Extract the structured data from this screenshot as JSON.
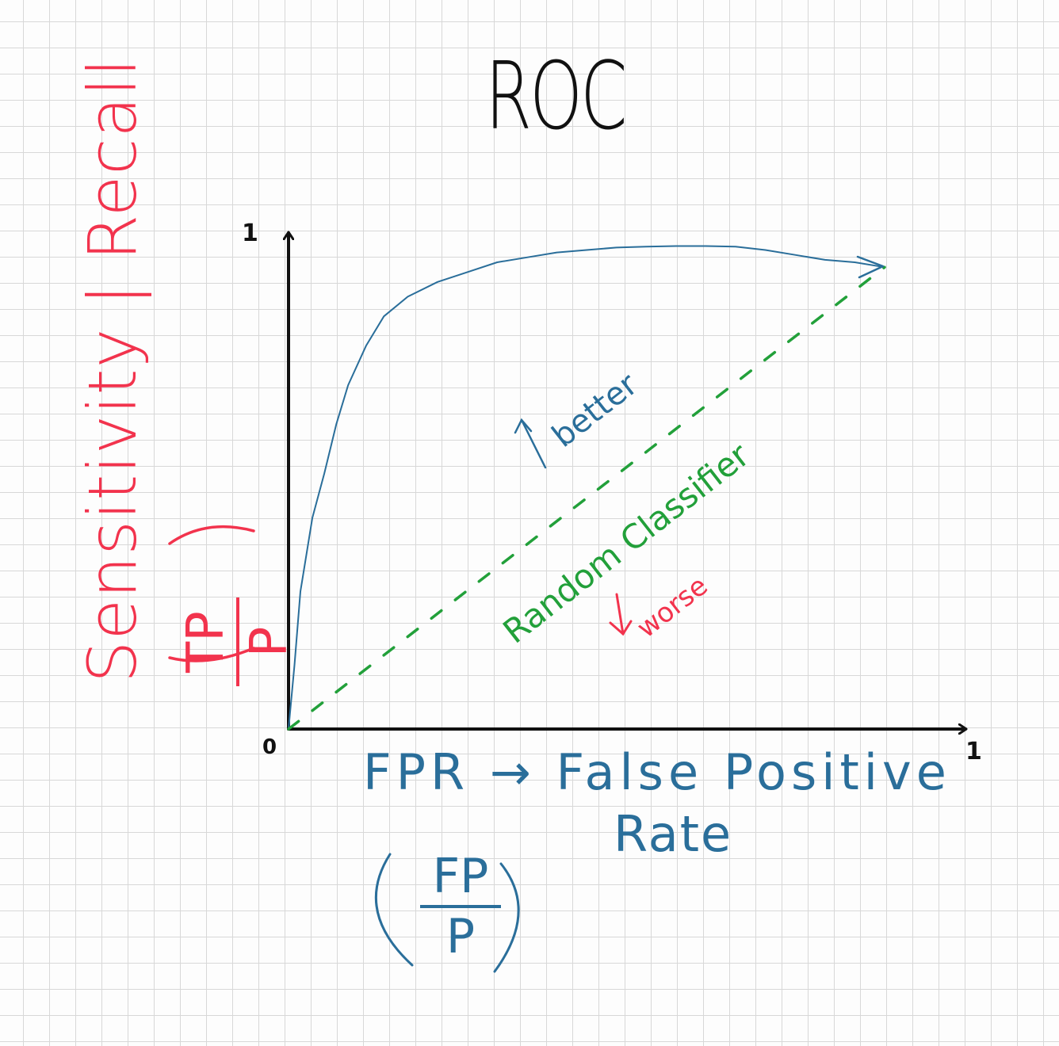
{
  "chart_data": {
    "type": "line",
    "title": "ROC",
    "xlabel_line1": "FPR → False Positive",
    "xlabel_line2": "Rate",
    "xlabel_formula": {
      "numerator": "FP",
      "denominator": "P"
    },
    "ylabel": "Sensitivity | Recall",
    "ylabel_formula": {
      "numerator": "TP",
      "denominator": "P"
    },
    "x_ticks": [
      "0",
      "1"
    ],
    "y_ticks": [
      "1"
    ],
    "xlim": [
      0,
      1
    ],
    "ylim": [
      0,
      1
    ],
    "grid": true,
    "series": [
      {
        "color": "#2a6e9a",
        "style": "solid",
        "x": [
          0,
          0.01,
          0.02,
          0.04,
          0.06,
          0.08,
          0.1,
          0.13,
          0.16,
          0.2,
          0.25,
          0.3,
          0.35,
          0.4,
          0.45,
          0.5,
          0.55,
          0.6,
          0.65,
          0.7,
          0.75,
          0.8,
          0.85,
          0.9,
          0.95,
          1.0
        ],
        "y": [
          0,
          0.13,
          0.28,
          0.43,
          0.52,
          0.62,
          0.7,
          0.78,
          0.84,
          0.88,
          0.91,
          0.93,
          0.95,
          0.96,
          0.97,
          0.975,
          0.98,
          0.982,
          0.983,
          0.983,
          0.982,
          0.975,
          0.965,
          0.955,
          0.95,
          0.94
        ]
      },
      {
        "color": "#22a03a",
        "style": "dashed",
        "x": [
          0,
          1
        ],
        "y": [
          0,
          0.94
        ]
      }
    ],
    "annotations": [
      {
        "text": "better",
        "color": "#2a6e9a"
      },
      {
        "text": "Random Classifier",
        "color": "#22a03a"
      },
      {
        "text": "worse",
        "color": "#f2334d"
      }
    ]
  }
}
